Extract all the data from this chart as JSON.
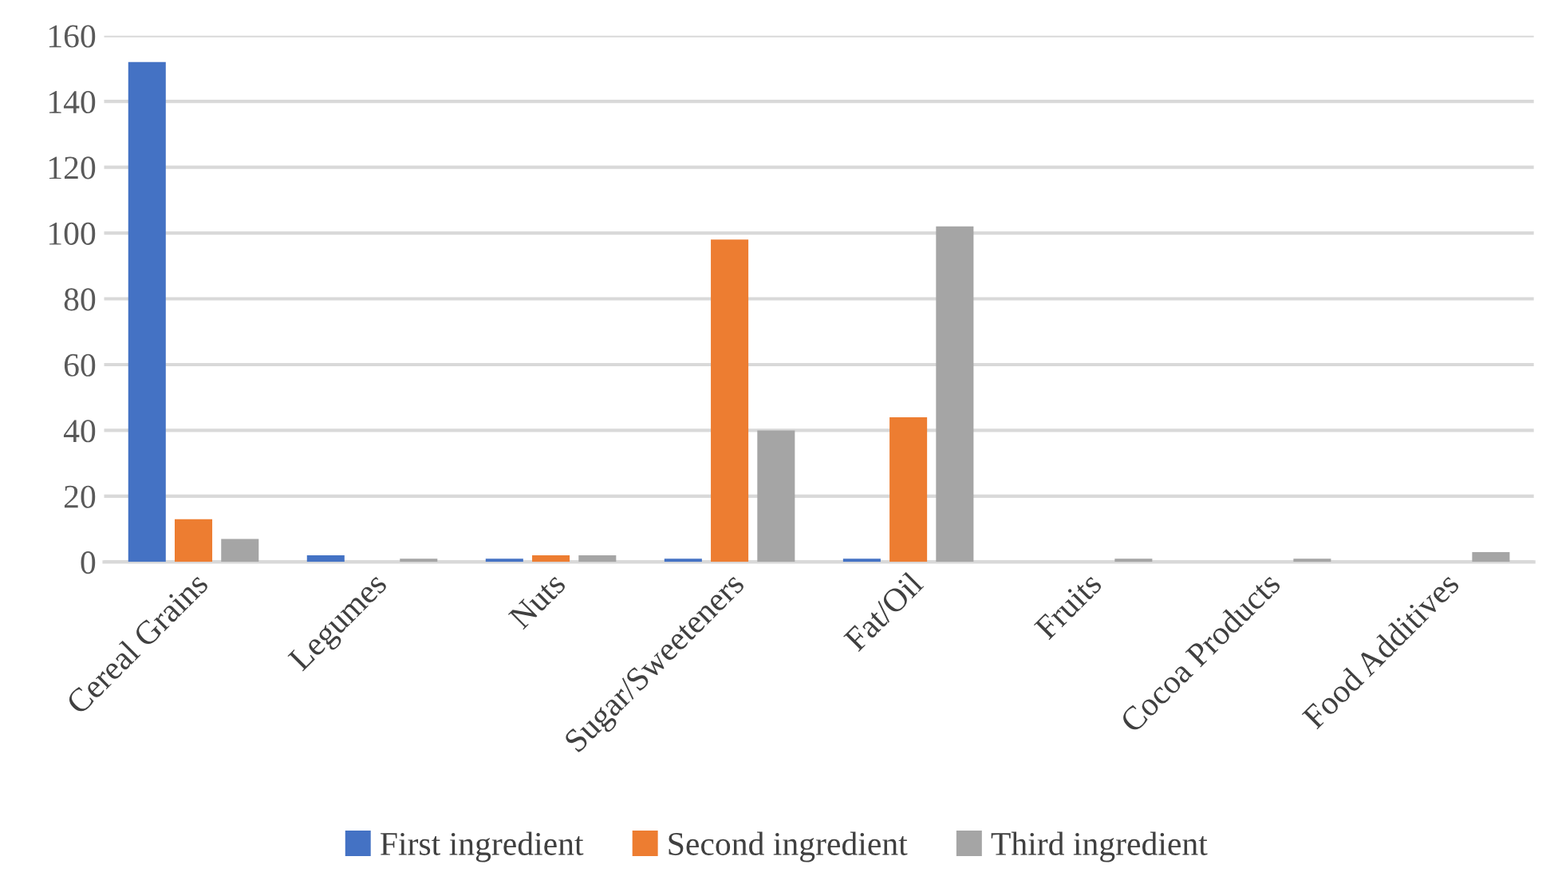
{
  "chart_data": {
    "type": "bar",
    "categories": [
      "Cereal Grains",
      "Legumes",
      "Nuts",
      "Sugar/Sweeteners",
      "Fat/Oil",
      "Fruits",
      "Cocoa Products",
      "Food Additives"
    ],
    "series": [
      {
        "name": "First ingredient",
        "color": "#4472c4",
        "values": [
          152,
          2,
          1,
          1,
          1,
          0,
          0,
          0
        ]
      },
      {
        "name": "Second ingredient",
        "color": "#ed7d31",
        "values": [
          13,
          0,
          2,
          98,
          44,
          0,
          0,
          0
        ]
      },
      {
        "name": "Third ingredient",
        "color": "#a5a5a5",
        "values": [
          7,
          1,
          2,
          40,
          102,
          1,
          1,
          3
        ]
      }
    ],
    "ylim": [
      0,
      160
    ],
    "yticks": [
      0,
      20,
      40,
      60,
      80,
      100,
      120,
      140,
      160
    ],
    "grid": "y",
    "legend": "bottom"
  }
}
